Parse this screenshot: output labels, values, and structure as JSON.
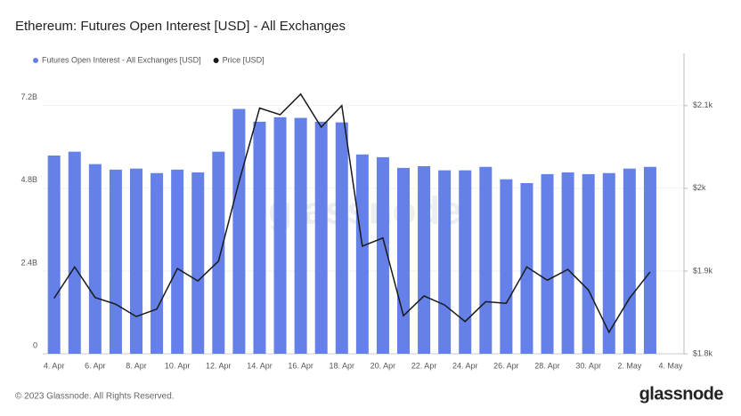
{
  "chart_data": {
    "type": "bar_line",
    "title": "Ethereum: Futures Open Interest [USD] - All Exchanges",
    "watermark": "glassnode",
    "footer": "© 2023 Glassnode. All Rights Reserved.",
    "logo": "glassnode",
    "categories": [
      "4. Apr",
      null,
      "6. Apr",
      null,
      "8. Apr",
      null,
      "10. Apr",
      null,
      "12. Apr",
      null,
      "14. Apr",
      null,
      "16. Apr",
      null,
      "18. Apr",
      null,
      "20. Apr",
      null,
      "22. Apr",
      null,
      "24. Apr",
      null,
      "26. Apr",
      null,
      "28. Apr",
      null,
      "30. Apr",
      null,
      "2. May",
      null,
      "4. May"
    ],
    "series": [
      {
        "name": "Futures Open Interest - All Exchanges [USD]",
        "color": "#6580e8",
        "type": "bar",
        "values": [
          5750000000.0,
          5860000000.0,
          5500000000.0,
          5340000000.0,
          5370000000.0,
          5240000000.0,
          5340000000.0,
          5260000000.0,
          5860000000.0,
          7100000000.0,
          6730000000.0,
          6860000000.0,
          6840000000.0,
          6730000000.0,
          6710000000.0,
          5780000000.0,
          5700000000.0,
          5390000000.0,
          5440000000.0,
          5320000000.0,
          5320000000.0,
          5420000000.0,
          5060000000.0,
          4950000000.0,
          5210000000.0,
          5260000000.0,
          5210000000.0,
          5240000000.0,
          5370000000.0,
          5420000000.0,
          null
        ]
      },
      {
        "name": "Price [USD]",
        "color": "#1a1a1a",
        "type": "line",
        "axis": "y2",
        "values": [
          1867,
          1905,
          1868,
          1860,
          1845,
          1854,
          1903,
          1888,
          1912,
          2008,
          2097,
          2089,
          2114,
          2074,
          2100,
          1930,
          1940,
          1846,
          1870,
          1859,
          1839,
          1863,
          1861,
          1905,
          1889,
          1902,
          1877,
          1826,
          1867,
          1899,
          null
        ]
      }
    ],
    "ylim": [
      0,
      8300000000.0
    ],
    "yticks": [
      0,
      {
        "value": 2400000000.0,
        "label": "2.4B"
      },
      {
        "value": 4800000000.0,
        "label": "4.8B"
      },
      {
        "value": 7200000000.0,
        "label": "7.2B"
      }
    ],
    "y2lim": [
      1800,
      2146
    ],
    "y2ticks": [
      {
        "value": 1800,
        "label": "$1.8k"
      },
      {
        "value": 1900,
        "label": "$1.9k"
      },
      {
        "value": 2000,
        "label": "$2k"
      },
      {
        "value": 2100,
        "label": "$2.1k"
      }
    ],
    "grid": true
  }
}
